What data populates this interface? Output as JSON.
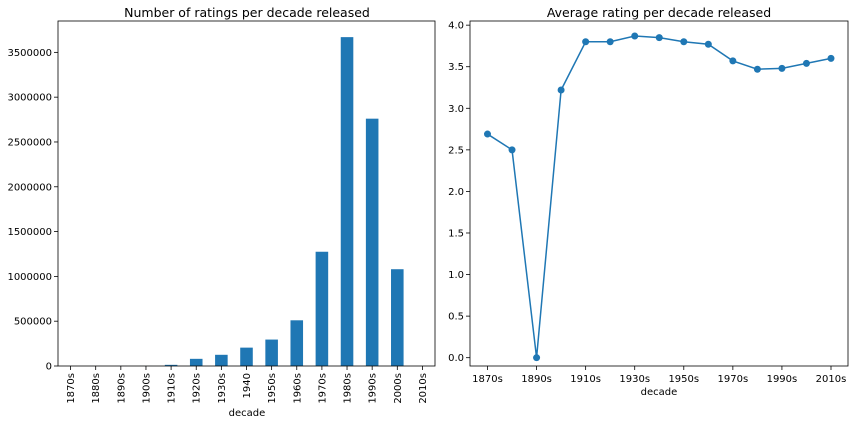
{
  "chart_data": [
    {
      "type": "bar",
      "title": "Number of ratings per decade released",
      "xlabel": "decade",
      "ylabel": "",
      "categories": [
        "1870s",
        "1880s",
        "1890s",
        "1900s",
        "1910s",
        "1920s",
        "1930s",
        "1940",
        "1950s",
        "1960s",
        "1970s",
        "1980s",
        "1990s",
        "2000s",
        "2010s"
      ],
      "values": [
        0,
        200,
        200,
        500,
        13000,
        80000,
        125000,
        205000,
        295000,
        510000,
        1275000,
        3670000,
        2760000,
        1080000,
        0
      ],
      "ylim": [
        0,
        3850000
      ],
      "yticks": [
        0,
        500000,
        1000000,
        1500000,
        2000000,
        2500000,
        3000000,
        3500000
      ],
      "ytick_labels": [
        "0",
        "500000",
        "1000000",
        "1500000",
        "2000000",
        "2500000",
        "3000000",
        "3500000"
      ],
      "grid": false,
      "color": "#1f77b4"
    },
    {
      "type": "line",
      "title": "Average rating per decade released",
      "xlabel": "decade",
      "ylabel": "",
      "x": [
        "1870s",
        "1880s",
        "1890s",
        "1900s",
        "1910s",
        "1920s",
        "1930s",
        "1940s",
        "1950s",
        "1960s",
        "1970s",
        "1980s",
        "1990s",
        "2000s",
        "2010s"
      ],
      "values": [
        2.69,
        2.5,
        0.0,
        3.22,
        3.8,
        3.8,
        3.87,
        3.85,
        3.8,
        3.77,
        3.57,
        3.47,
        3.48,
        3.54,
        3.6
      ],
      "xticks_shown": [
        "1870s",
        "1890s",
        "1910s",
        "1930s",
        "1950s",
        "1970s",
        "1990s",
        "2010s"
      ],
      "ylim": [
        -0.1,
        4.05
      ],
      "yticks": [
        0.0,
        0.5,
        1.0,
        1.5,
        2.0,
        2.5,
        3.0,
        3.5,
        4.0
      ],
      "ytick_labels": [
        "0.0",
        "0.5",
        "1.0",
        "1.5",
        "2.0",
        "2.5",
        "3.0",
        "3.5",
        "4.0"
      ],
      "marker": "o",
      "grid": false,
      "color": "#1f77b4"
    }
  ]
}
